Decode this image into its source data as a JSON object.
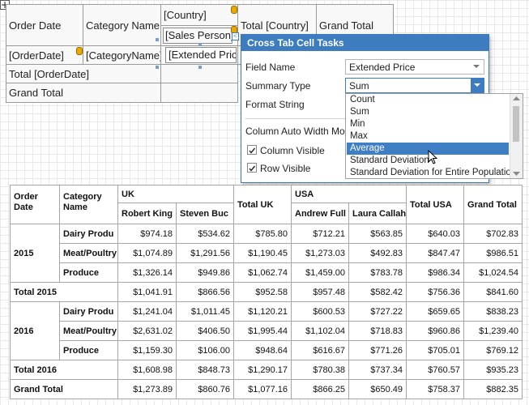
{
  "designer": {
    "header": {
      "order_date": "Order Date",
      "category_name": "Category Name",
      "country": "[Country]",
      "sales_person": "[Sales Person]",
      "total_country": "Total [Country]",
      "grand_total": "Grand Total"
    },
    "detail": {
      "order_date": "[OrderDate]",
      "category_name": "[CategoryName]",
      "extended_price": "[Extended Price]"
    },
    "total_order_date": "Total [OrderDate]",
    "grand_total": "Grand Total"
  },
  "tasks_panel": {
    "title": "Cross Tab Cell Tasks",
    "field_name": {
      "label": "Field Name",
      "value": "Extended Price"
    },
    "summary_type": {
      "label": "Summary Type",
      "value": "Sum",
      "options": [
        "Count",
        "Sum",
        "Min",
        "Max",
        "Average",
        "Standard Deviation",
        "Standard Deviation for Entire Population"
      ]
    },
    "format_string": "Format String",
    "column_auto_width_mode": "Column Auto Width Mode",
    "column_visible": "Column Visible",
    "row_visible": "Row Visible"
  },
  "preview": {
    "header": {
      "order_date": "Order Date",
      "category_name": "Category Name",
      "grand_total": "Grand Total"
    },
    "countries": [
      {
        "name": "UK",
        "persons": [
          "Robert King",
          "Steven Buc"
        ],
        "total": "Total UK"
      },
      {
        "name": "USA",
        "persons": [
          "Andrew Full",
          "Laura Callah"
        ],
        "total": "Total USA"
      }
    ],
    "groups": [
      {
        "year": "2015",
        "rows": [
          {
            "category": "Dairy Produ",
            "values": [
              "$974.18",
              "$534.62",
              "$785.80",
              "$712.21",
              "$563.85",
              "$640.03",
              "$702.83"
            ]
          },
          {
            "category": "Meat/Poultry",
            "values": [
              "$1,074.89",
              "$1,291.56",
              "$1,190.45",
              "$1,273.03",
              "$492.83",
              "$847.47",
              "$986.51"
            ]
          },
          {
            "category": "Produce",
            "values": [
              "$1,326.14",
              "$949.86",
              "$1,062.74",
              "$1,459.00",
              "$783.78",
              "$986.34",
              "$1,024.54"
            ]
          }
        ],
        "total": {
          "label": "Total 2015",
          "values": [
            "$1,041.91",
            "$866.56",
            "$952.58",
            "$957.48",
            "$582.42",
            "$756.36",
            "$841.60"
          ]
        }
      },
      {
        "year": "2016",
        "rows": [
          {
            "category": "Dairy Produ",
            "values": [
              "$1,241.04",
              "$1,011.45",
              "$1,120.21",
              "$600.53",
              "$727.22",
              "$659.65",
              "$838.23"
            ]
          },
          {
            "category": "Meat/Poultry",
            "values": [
              "$2,631.02",
              "$406.50",
              "$1,995.44",
              "$1,102.04",
              "$718.83",
              "$960.86",
              "$1,239.40"
            ]
          },
          {
            "category": "Produce",
            "values": [
              "$1,159.30",
              "$106.00",
              "$948.64",
              "$616.67",
              "$771.26",
              "$705.01",
              "$769.12"
            ]
          }
        ],
        "total": {
          "label": "Total 2016",
          "values": [
            "$1,608.98",
            "$848.73",
            "$1,290.17",
            "$780.38",
            "$737.34",
            "$760.57",
            "$935.23"
          ]
        }
      }
    ],
    "grand_total": {
      "label": "Grand Total",
      "values": [
        "$1,273.89",
        "$860.76",
        "$1,077.16",
        "$866.25",
        "$650.49",
        "$758.37",
        "$882.35"
      ]
    }
  }
}
